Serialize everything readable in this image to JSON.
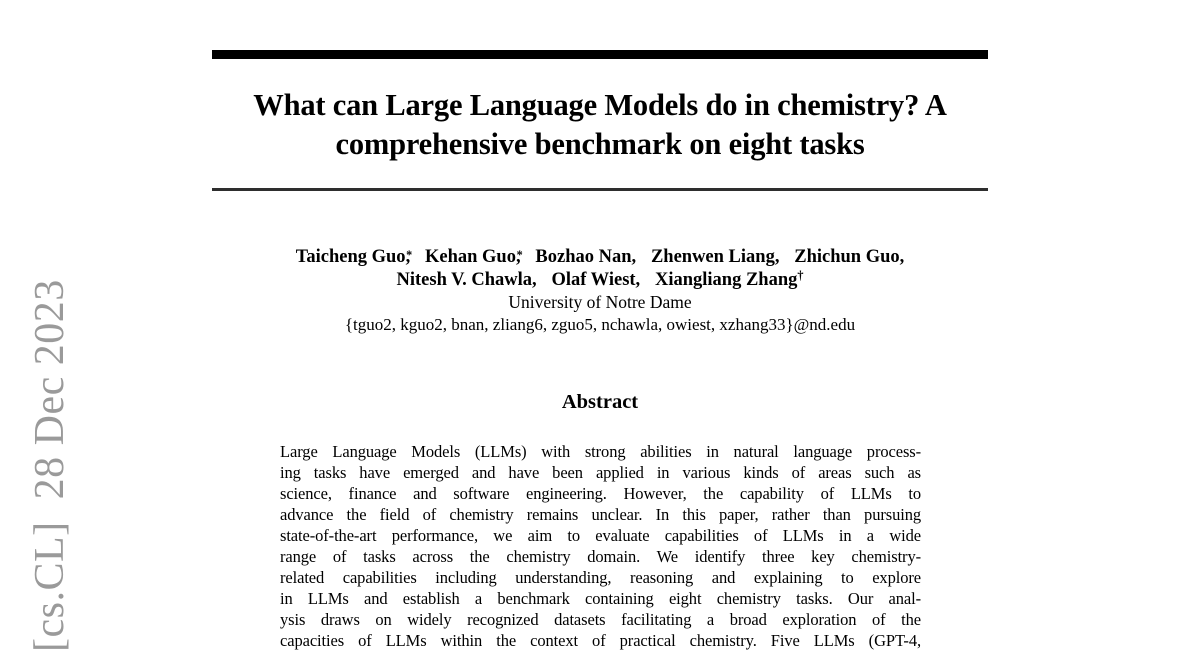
{
  "colors": {
    "text": "#000000",
    "stamp_gray": "#9a9a9a",
    "rule_black": "#000000"
  },
  "stamp": {
    "text": "[cs.CL]  28 Dec 2023"
  },
  "title": {
    "line1": "What can Large Language Models do in chemistry? A",
    "line2": "comprehensive benchmark on eight tasks"
  },
  "authors": {
    "comma": ",",
    "row1": [
      {
        "name": "Taicheng Guo",
        "mark": "*"
      },
      {
        "name": "Kehan Guo",
        "mark": "*"
      },
      {
        "name": "Bozhao Nan,"
      },
      {
        "name": "Zhenwen Liang,"
      },
      {
        "name": "Zhichun Guo,"
      }
    ],
    "row2": [
      {
        "name": "Nitesh V. Chawla,"
      },
      {
        "name": "Olaf Wiest,"
      },
      {
        "name": "Xiangliang Zhang",
        "mark": "†"
      }
    ],
    "affiliation": "University of Notre Dame",
    "emails": "{tguo2, kguo2, bnan, zliang6, zguo5, nchawla, owiest, xzhang33}@nd.edu"
  },
  "abstract": {
    "heading": "Abstract",
    "lines": [
      "Large Language Models (LLMs) with strong abilities in natural language process-",
      "ing tasks have emerged and have been applied in various kinds of areas such as",
      "science, finance and software engineering. However, the capability of LLMs to",
      "advance the field of chemistry remains unclear. In this paper, rather than pursuing",
      "state-of-the-art performance, we aim to evaluate capabilities of LLMs in a wide",
      "range of tasks across the chemistry domain. We identify three key chemistry-",
      "related capabilities including understanding, reasoning and explaining to explore",
      "in LLMs and establish a benchmark containing eight chemistry tasks. Our anal-",
      "ysis draws on widely recognized datasets facilitating a broad exploration of the",
      "capacities of LLMs within the context of practical chemistry. Five LLMs (GPT-4,"
    ]
  }
}
